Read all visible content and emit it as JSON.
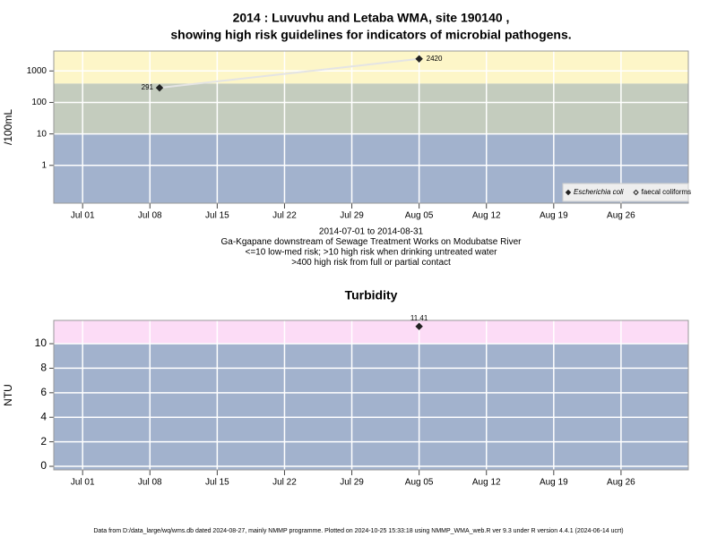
{
  "chart_data": [
    {
      "type": "scatter",
      "title": [
        "2014 : Luvuvhu and Letaba WMA, site 190140 ,",
        "showing high risk guidelines for indicators of microbial pathogens."
      ],
      "y_label": "/100mL",
      "log_y": true,
      "notes": [
        "2014-07-01 to 2014-08-31",
        "Ga-Kgapane downstream of Sewage Treatment Works on Modubatse River",
        "<=10 low-med risk; >10 high risk when drinking untreated water",
        ">400 high risk from full or partial contact"
      ],
      "xlim": [
        "2014-06-28",
        "2014-09-02"
      ],
      "xticks": [
        {
          "value": "2014-07-01",
          "label": "Jul 01"
        },
        {
          "value": "2014-07-08",
          "label": "Jul 08"
        },
        {
          "value": "2014-07-15",
          "label": "Jul 15"
        },
        {
          "value": "2014-07-22",
          "label": "Jul 22"
        },
        {
          "value": "2014-07-29",
          "label": "Jul 29"
        },
        {
          "value": "2014-08-05",
          "label": "Aug 05"
        },
        {
          "value": "2014-08-12",
          "label": "Aug 12"
        },
        {
          "value": "2014-08-19",
          "label": "Aug 19"
        },
        {
          "value": "2014-08-26",
          "label": "Aug 26"
        }
      ],
      "ylim": [
        0.063,
        4300
      ],
      "yticks": [
        1,
        10,
        100,
        1000
      ],
      "bands": {
        "thresholds": [
          10,
          400
        ],
        "colors": [
          "#a2b2cd",
          "#c4ccbe",
          "#fdf6c8"
        ]
      },
      "grid": true,
      "legend": "bottom-right",
      "series": [
        {
          "name": "Escherichia coli",
          "color": "#222222",
          "marker": "filled",
          "line_color": "#e4e4e4",
          "x": [
            "2014-07-09",
            "2014-08-05"
          ],
          "values": [
            291,
            2420
          ]
        },
        {
          "name": "faecal coliforms",
          "color": "#222222",
          "marker": "open",
          "x": [],
          "values": []
        }
      ]
    },
    {
      "type": "scatter",
      "title": "Turbidity",
      "y_label": "NTU",
      "log_y": false,
      "xlim": [
        "2014-06-28",
        "2014-09-02"
      ],
      "xticks": [
        {
          "value": "2014-07-01",
          "label": "Jul 01"
        },
        {
          "value": "2014-07-08",
          "label": "Jul 08"
        },
        {
          "value": "2014-07-15",
          "label": "Jul 15"
        },
        {
          "value": "2014-07-22",
          "label": "Jul 22"
        },
        {
          "value": "2014-07-29",
          "label": "Jul 29"
        },
        {
          "value": "2014-08-05",
          "label": "Aug 05"
        },
        {
          "value": "2014-08-12",
          "label": "Aug 12"
        },
        {
          "value": "2014-08-19",
          "label": "Aug 19"
        },
        {
          "value": "2014-08-26",
          "label": "Aug 26"
        }
      ],
      "ylim": [
        -0.29,
        11.9
      ],
      "yticks": [
        0,
        2,
        4,
        6,
        8,
        10
      ],
      "bands": {
        "thresholds": [
          10
        ],
        "colors": [
          "#a2b2cd",
          "#fcdcf6"
        ]
      },
      "grid": true,
      "series": [
        {
          "name": "Turbidity",
          "color": "#222222",
          "marker": "filled",
          "x": [
            "2014-08-05"
          ],
          "values": [
            11.41
          ]
        }
      ]
    }
  ],
  "footer": "Data from D:/data_large/wq/wms.db dated 2024-08-27, mainly NMMP programme. Plotted on 2024-10-25 15:33:18 using NMMP_WMA_web.R ver 9.3 under R version 4.4.1 (2024-06-14 ucrt)"
}
